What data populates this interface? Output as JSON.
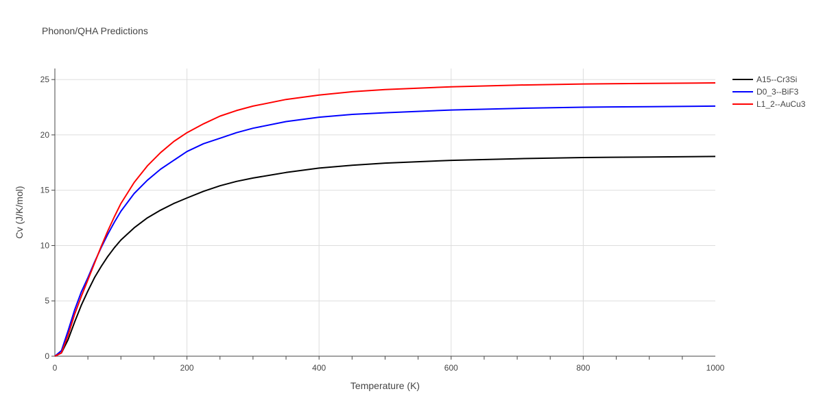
{
  "chart_data": {
    "type": "line",
    "title": "Phonon/QHA Predictions",
    "xlabel": "Temperature (K)",
    "ylabel": "Cv (J/K/mol)",
    "xlim": [
      0,
      1000
    ],
    "ylim": [
      0,
      26
    ],
    "x_ticks": [
      0,
      200,
      400,
      600,
      800,
      1000
    ],
    "y_ticks": [
      0,
      5,
      10,
      15,
      20,
      25
    ],
    "grid": true,
    "legend_position": "top-right",
    "series": [
      {
        "name": "A15--Cr3Si",
        "color": "#000000",
        "x": [
          0,
          10,
          20,
          30,
          40,
          50,
          60,
          70,
          80,
          90,
          100,
          120,
          140,
          160,
          180,
          200,
          225,
          250,
          275,
          300,
          350,
          400,
          450,
          500,
          600,
          700,
          800,
          900,
          1000
        ],
        "y": [
          0,
          0.3,
          1.5,
          3.1,
          4.6,
          5.9,
          7.1,
          8.1,
          9.0,
          9.8,
          10.5,
          11.6,
          12.5,
          13.2,
          13.8,
          14.3,
          14.9,
          15.4,
          15.8,
          16.1,
          16.6,
          17.0,
          17.25,
          17.45,
          17.7,
          17.85,
          17.95,
          18.0,
          18.05
        ]
      },
      {
        "name": "D0_3--BiF3",
        "color": "#0000ff",
        "x": [
          0,
          10,
          20,
          30,
          40,
          50,
          60,
          70,
          80,
          90,
          100,
          120,
          140,
          160,
          180,
          200,
          225,
          250,
          275,
          300,
          350,
          400,
          450,
          500,
          600,
          700,
          800,
          900,
          1000
        ],
        "y": [
          0,
          0.5,
          2.3,
          4.2,
          5.8,
          7.1,
          8.5,
          9.8,
          11.0,
          12.1,
          13.1,
          14.7,
          15.9,
          16.9,
          17.7,
          18.5,
          19.2,
          19.7,
          20.2,
          20.6,
          21.2,
          21.6,
          21.85,
          22.0,
          22.25,
          22.4,
          22.5,
          22.55,
          22.6
        ]
      },
      {
        "name": "L1_2--AuCu3",
        "color": "#ff0000",
        "x": [
          0,
          10,
          20,
          30,
          40,
          50,
          60,
          70,
          80,
          90,
          100,
          120,
          140,
          160,
          180,
          200,
          225,
          250,
          275,
          300,
          350,
          400,
          450,
          500,
          600,
          700,
          800,
          900,
          1000
        ],
        "y": [
          0,
          0.3,
          1.9,
          3.8,
          5.4,
          6.9,
          8.4,
          9.9,
          11.3,
          12.6,
          13.8,
          15.7,
          17.2,
          18.4,
          19.4,
          20.2,
          21.0,
          21.7,
          22.2,
          22.6,
          23.2,
          23.6,
          23.9,
          24.1,
          24.35,
          24.5,
          24.6,
          24.65,
          24.7
        ]
      }
    ]
  }
}
